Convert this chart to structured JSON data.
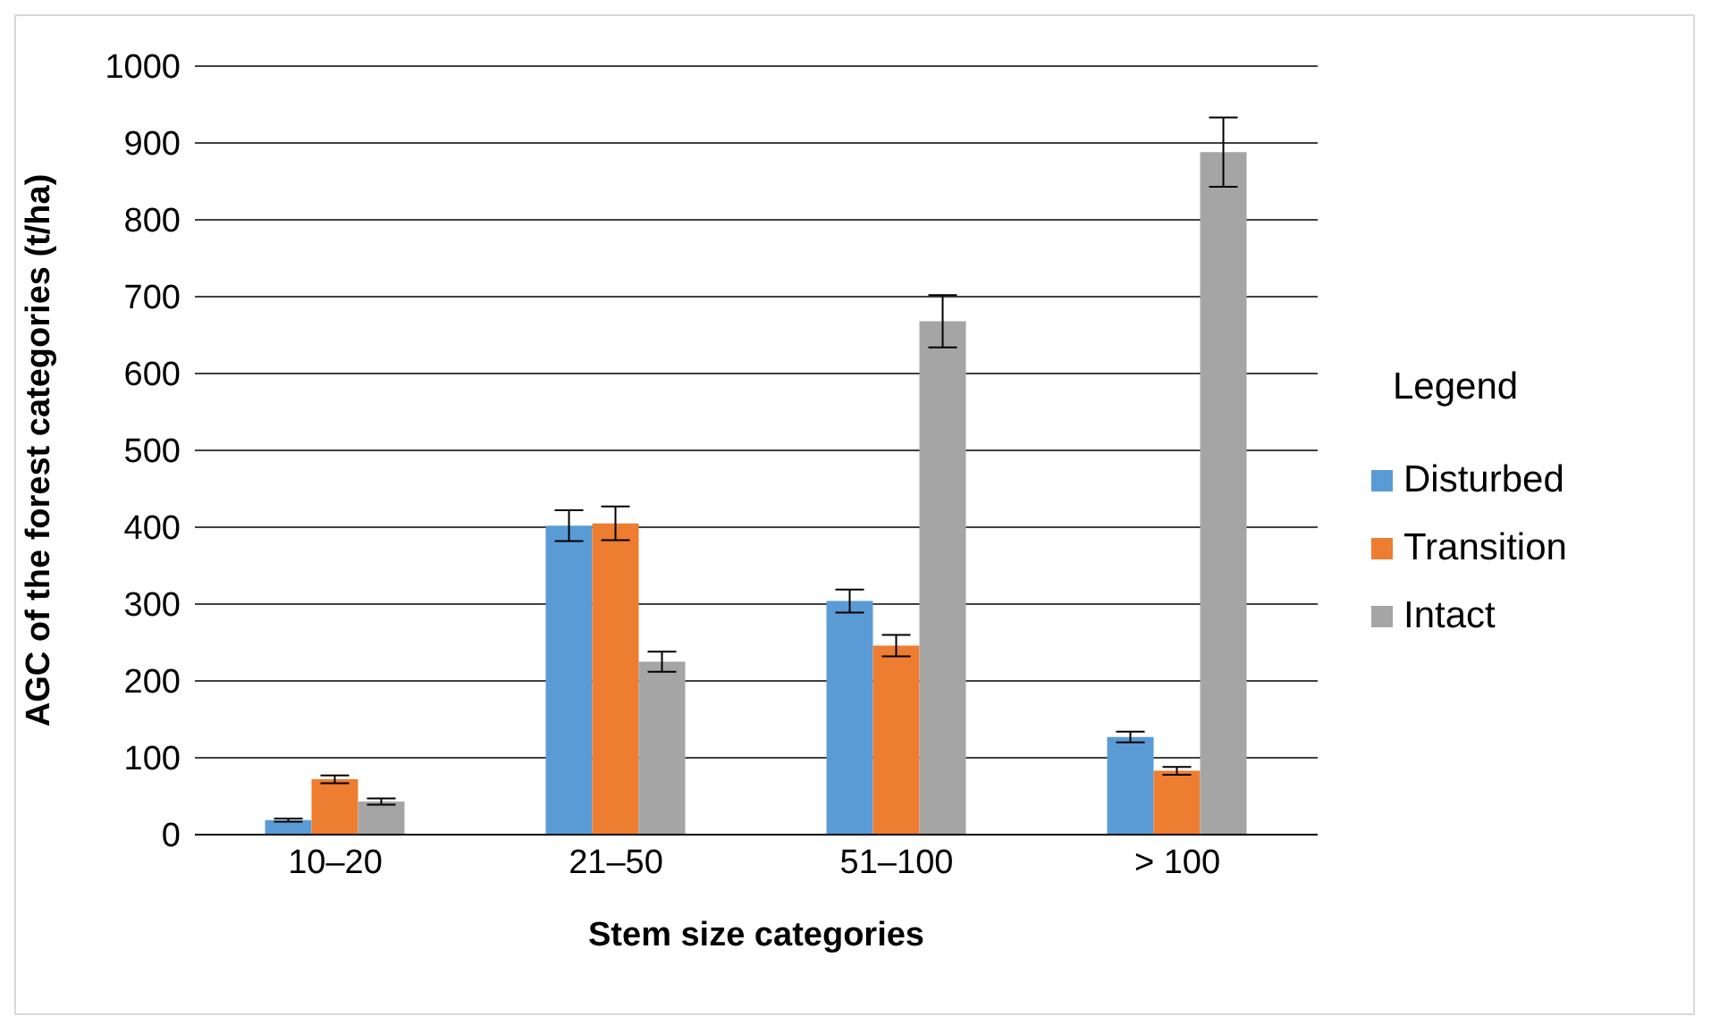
{
  "chart_data": {
    "type": "bar",
    "xlabel": "Stem size categories",
    "ylabel": "AGC of the forest categories (t/ha)",
    "legend_title": "Legend",
    "categories": [
      "10–20",
      "21–50",
      "51–100",
      "> 100"
    ],
    "series": [
      {
        "name": "Disturbed",
        "color": "#5b9bd5",
        "values": [
          19,
          402,
          304,
          127
        ],
        "errors": [
          2,
          20,
          15,
          7
        ]
      },
      {
        "name": "Transition",
        "color": "#ed7d31",
        "values": [
          72,
          405,
          246,
          83
        ],
        "errors": [
          5,
          22,
          14,
          5
        ]
      },
      {
        "name": "Intact",
        "color": "#a5a5a5",
        "values": [
          43,
          225,
          668,
          888
        ],
        "errors": [
          4,
          13,
          34,
          45
        ]
      }
    ],
    "ylim": [
      0,
      1000
    ],
    "yticks": [
      0,
      100,
      200,
      300,
      400,
      500,
      600,
      700,
      800,
      900,
      1000
    ],
    "grid": "y",
    "legend": "right"
  }
}
